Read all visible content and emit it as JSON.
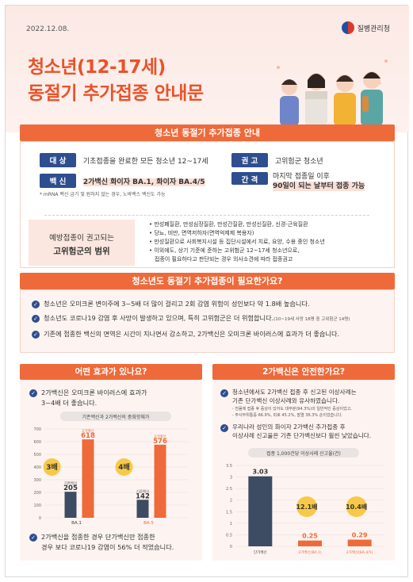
{
  "header": {
    "date": "2022.12.08.",
    "org": "질병관리청",
    "title_line1": "청소년(12-17세)",
    "title_line2": "동절기 추가접종 안내문"
  },
  "section1": {
    "banner": "청소년 동절기 추가접종 안내",
    "target_chip": "대 상",
    "target_text": "기초접종을 완료한 모든 청소년 12~17세",
    "recommend_chip": "권 고",
    "recommend_text": "고위험군 청소년",
    "vaccine_chip": "백 신",
    "vaccine_text": "2가백신 화이자 BA.1, 화이자 BA.4/5",
    "vaccine_note": "* mRNA 백신 금기 및 원하지 않는 경우, 노바백스 백신도 가능",
    "interval_chip": "간 격",
    "interval_text1": "마지막 접종일 이후",
    "interval_text2": "90일이 되는 날부터 접종 가능",
    "risk_label1": "예방접종이 권고되는",
    "risk_label2": "고위험군의 범위",
    "risk_items": [
      "만성폐질환, 만성심장질환, 만성간질환, 만성신질환, 신경-근육질환",
      "당뇨, 비만, 면역저하자(면역억제제 복용자)",
      "만성질환으로 사회복지시설 등 집단시설에서 치료, 요양, 수용 중인 청소년",
      "이외에도, 상기 기준에 준하는 고위험군 12~17세 청소년으로,",
      "접종이 필요하다고 판단되는 경우 의사소견에 따라 접종권고"
    ]
  },
  "section2": {
    "banner": "청소년도 동절기 추가접종이 필요한가요?",
    "items": [
      "청소년은 오미크론 변이주에 3~5배 더 많이 걸리고 2회 감염 위험이 성인보다 약 1.8배 높습니다.",
      "청소년도 코로나19 감염 후 사망이 발생하고 있으며, 특히 고위험군은 더 위험합니다.",
      "기존에 접종한 백신의 면역은 시간이 지나면서 감소하고, 2가백신은 오미크론 바이러스에 효과가 더 좋습니다."
    ],
    "item2_note": "(10~19세 사망 18명 중 고위험군 14명)"
  },
  "left_panel": {
    "head": "어떤 효과가 있나요?",
    "intro1": "2가백신은 오미크론 바이러스에 효과가",
    "intro2": "3~4배 더 좋습니다.",
    "footer1": "2가백신을 접종한 경우 단가백신만 접종한",
    "footer2": "경우 보다 코로나19 감염이 56% 더 적었습니다.",
    "badge1": "3배",
    "badge2": "4배"
  },
  "right_panel": {
    "head": "2가백신은 안전한가요?",
    "p1_line1": "청소년에서도 2가백신 접종 후 신고된 이상사례는",
    "p1_line2": "기존 단가백신 이상사례와 유사하였습니다.",
    "p1_note1": "- 전몸에 접종 후 증상이 있어도 대부분(94.3%)의 일반적인 증상이었고,",
    "p1_note2": "- 주사부위통증 66.9%, 피로 45.2%, 발열 36.3% 순이었습니다.",
    "p2_line1": "우리나라 성인의 화이자 2가백신 추가접종 후",
    "p2_line2": "이상사례 신고율은 기존 단가백신보다 훨씬 낮았습니다.",
    "badge1": "12.1배",
    "badge2": "10.4배"
  },
  "chart_data": [
    {
      "type": "bar",
      "title": "기존백신과 2가백신의 중화항체가",
      "categories": [
        "BA.1",
        "BA.5"
      ],
      "series": [
        {
          "name": "기존백신",
          "values": [
            205,
            142
          ]
        },
        {
          "name": "2가백신",
          "values": [
            618,
            576
          ]
        }
      ],
      "ylim": [
        0,
        700
      ],
      "yticks": [
        0,
        100,
        200,
        300,
        400,
        500,
        600,
        700
      ],
      "colors": [
        "#3d4b63",
        "#ef6a3a"
      ]
    },
    {
      "type": "bar",
      "title": "접종 1,000건당 이상사례 신고율(건)",
      "categories": [
        "단가백신",
        "2가백신(BA.1)",
        "2가백신(BA.4/5)"
      ],
      "values": [
        3.03,
        0.25,
        0.29
      ],
      "ylim": [
        0,
        3.5
      ],
      "yticks": [
        0,
        0.5,
        1,
        1.5,
        2,
        2.5,
        3,
        3.5
      ],
      "colors": [
        "#3d4b63",
        "#ef6a3a",
        "#ef6a3a"
      ]
    }
  ]
}
